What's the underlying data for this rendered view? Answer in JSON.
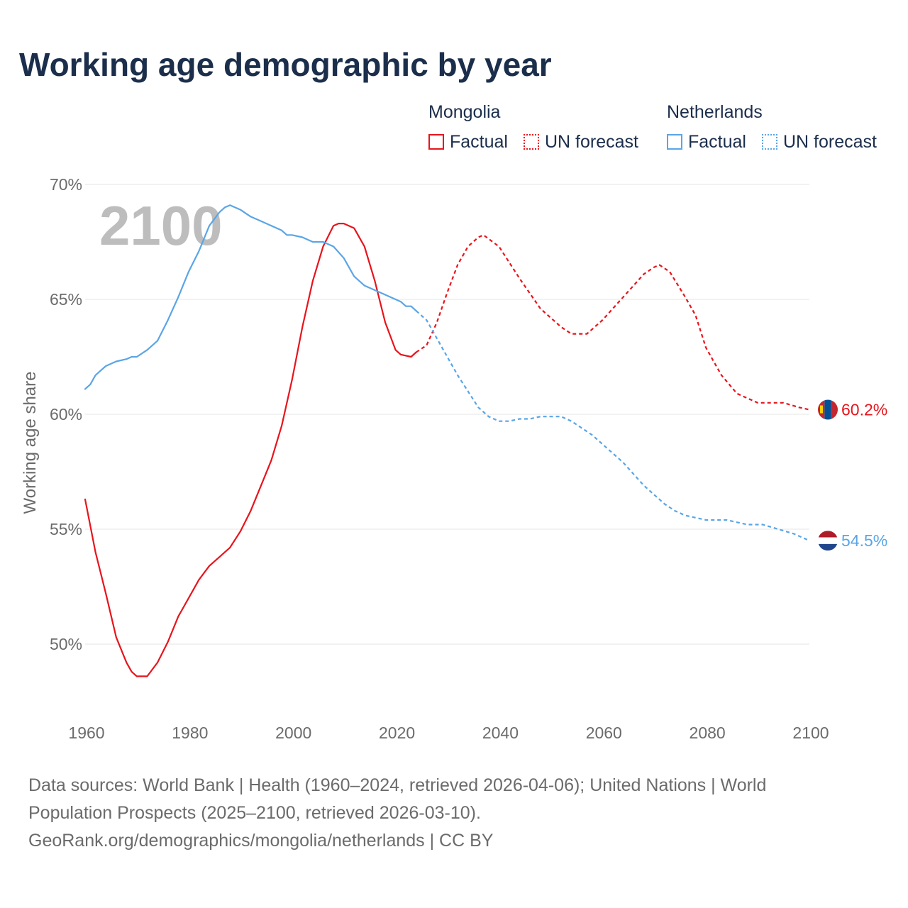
{
  "title": "Working age demographic by year",
  "legend": {
    "mongolia_title": "Mongolia",
    "netherlands_title": "Netherlands",
    "factual": "Factual",
    "forecast": "UN forecast"
  },
  "colors": {
    "mongolia": "#e8141c",
    "netherlands": "#5aa5e6",
    "title": "#1b2e4b",
    "grid": "#e6e6e6",
    "muted": "#6b6b6b"
  },
  "footer": {
    "line1": "Data sources: World Bank | Health (1960–2024, retrieved 2026-04-06); United Nations | World",
    "line2": "Population Prospects (2025–2100, retrieved 2026-03-10).",
    "line3": "GeoRank.org/demographics/mongolia/netherlands | CC BY"
  },
  "chart_data": {
    "type": "line",
    "title": "Working age demographic by year",
    "xlabel": "",
    "ylabel": "Working age share",
    "xlim": [
      1960,
      2100
    ],
    "ylim": [
      47.5,
      70
    ],
    "x_ticks": [
      1960,
      1980,
      2000,
      2020,
      2040,
      2060,
      2080,
      2100
    ],
    "x_tick_labels": [
      "1960",
      "1980",
      "2000",
      "2020",
      "2040",
      "2060",
      "2080",
      "2100"
    ],
    "y_ticks": [
      50,
      55,
      60,
      65,
      70
    ],
    "y_tick_labels": [
      "50%",
      "55%",
      "60%",
      "65%",
      "70%"
    ],
    "current_year": "2100",
    "series": [
      {
        "name": "Mongolia",
        "segment": "Factual",
        "key": "mongolia",
        "dashed": false,
        "points": [
          [
            1960,
            56.3
          ],
          [
            1962,
            54.0
          ],
          [
            1964,
            52.2
          ],
          [
            1966,
            50.3
          ],
          [
            1968,
            49.2
          ],
          [
            1969,
            48.8
          ],
          [
            1970,
            48.6
          ],
          [
            1972,
            48.6
          ],
          [
            1974,
            49.2
          ],
          [
            1976,
            50.1
          ],
          [
            1978,
            51.2
          ],
          [
            1980,
            52.0
          ],
          [
            1982,
            52.8
          ],
          [
            1984,
            53.4
          ],
          [
            1986,
            53.8
          ],
          [
            1988,
            54.2
          ],
          [
            1990,
            54.9
          ],
          [
            1992,
            55.8
          ],
          [
            1994,
            56.9
          ],
          [
            1996,
            58.0
          ],
          [
            1998,
            59.5
          ],
          [
            2000,
            61.5
          ],
          [
            2002,
            63.8
          ],
          [
            2004,
            65.8
          ],
          [
            2006,
            67.3
          ],
          [
            2008,
            68.2
          ],
          [
            2009,
            68.3
          ],
          [
            2010,
            68.3
          ],
          [
            2012,
            68.1
          ],
          [
            2014,
            67.3
          ],
          [
            2016,
            65.8
          ],
          [
            2018,
            64.0
          ],
          [
            2020,
            62.8
          ],
          [
            2021,
            62.6
          ],
          [
            2023,
            62.5
          ],
          [
            2024,
            62.7
          ]
        ]
      },
      {
        "name": "Mongolia",
        "segment": "UN forecast",
        "key": "mongolia",
        "dashed": true,
        "points": [
          [
            2024,
            62.7
          ],
          [
            2026,
            63.0
          ],
          [
            2028,
            64.0
          ],
          [
            2030,
            65.3
          ],
          [
            2032,
            66.5
          ],
          [
            2034,
            67.3
          ],
          [
            2036,
            67.7
          ],
          [
            2037,
            67.8
          ],
          [
            2040,
            67.3
          ],
          [
            2044,
            65.9
          ],
          [
            2048,
            64.6
          ],
          [
            2052,
            63.8
          ],
          [
            2054,
            63.5
          ],
          [
            2057,
            63.5
          ],
          [
            2060,
            64.1
          ],
          [
            2064,
            65.1
          ],
          [
            2068,
            66.1
          ],
          [
            2070,
            66.4
          ],
          [
            2071,
            66.5
          ],
          [
            2073,
            66.2
          ],
          [
            2076,
            65.1
          ],
          [
            2078,
            64.3
          ],
          [
            2080,
            62.9
          ],
          [
            2083,
            61.7
          ],
          [
            2086,
            60.9
          ],
          [
            2090,
            60.5
          ],
          [
            2095,
            60.5
          ],
          [
            2098,
            60.3
          ],
          [
            2100,
            60.2
          ]
        ]
      },
      {
        "name": "Netherlands",
        "segment": "Factual",
        "key": "netherlands",
        "dashed": false,
        "points": [
          [
            1960,
            61.1
          ],
          [
            1961,
            61.3
          ],
          [
            1962,
            61.7
          ],
          [
            1963,
            61.9
          ],
          [
            1964,
            62.1
          ],
          [
            1966,
            62.3
          ],
          [
            1968,
            62.4
          ],
          [
            1969,
            62.5
          ],
          [
            1970,
            62.5
          ],
          [
            1972,
            62.8
          ],
          [
            1974,
            63.2
          ],
          [
            1976,
            64.1
          ],
          [
            1978,
            65.1
          ],
          [
            1980,
            66.2
          ],
          [
            1982,
            67.1
          ],
          [
            1984,
            68.2
          ],
          [
            1986,
            68.8
          ],
          [
            1987,
            69.0
          ],
          [
            1988,
            69.1
          ],
          [
            1990,
            68.9
          ],
          [
            1992,
            68.6
          ],
          [
            1994,
            68.4
          ],
          [
            1996,
            68.2
          ],
          [
            1998,
            68.0
          ],
          [
            1999,
            67.8
          ],
          [
            2000,
            67.8
          ],
          [
            2002,
            67.7
          ],
          [
            2004,
            67.5
          ],
          [
            2006,
            67.5
          ],
          [
            2008,
            67.3
          ],
          [
            2010,
            66.8
          ],
          [
            2012,
            66.0
          ],
          [
            2014,
            65.6
          ],
          [
            2016,
            65.4
          ],
          [
            2018,
            65.2
          ],
          [
            2020,
            65.0
          ],
          [
            2021,
            64.9
          ],
          [
            2022,
            64.7
          ],
          [
            2023,
            64.7
          ],
          [
            2024,
            64.5
          ]
        ]
      },
      {
        "name": "Netherlands",
        "segment": "UN forecast",
        "key": "netherlands",
        "dashed": true,
        "points": [
          [
            2024,
            64.5
          ],
          [
            2026,
            64.1
          ],
          [
            2028,
            63.3
          ],
          [
            2030,
            62.5
          ],
          [
            2032,
            61.7
          ],
          [
            2034,
            61.0
          ],
          [
            2036,
            60.3
          ],
          [
            2038,
            59.9
          ],
          [
            2040,
            59.7
          ],
          [
            2042,
            59.7
          ],
          [
            2044,
            59.8
          ],
          [
            2046,
            59.8
          ],
          [
            2048,
            59.9
          ],
          [
            2050,
            59.9
          ],
          [
            2052,
            59.9
          ],
          [
            2054,
            59.7
          ],
          [
            2056,
            59.4
          ],
          [
            2058,
            59.1
          ],
          [
            2060,
            58.7
          ],
          [
            2062,
            58.3
          ],
          [
            2064,
            57.9
          ],
          [
            2066,
            57.4
          ],
          [
            2068,
            56.9
          ],
          [
            2070,
            56.5
          ],
          [
            2072,
            56.1
          ],
          [
            2074,
            55.8
          ],
          [
            2076,
            55.6
          ],
          [
            2078,
            55.5
          ],
          [
            2080,
            55.4
          ],
          [
            2084,
            55.4
          ],
          [
            2088,
            55.2
          ],
          [
            2091,
            55.2
          ],
          [
            2094,
            55.0
          ],
          [
            2097,
            54.8
          ],
          [
            2100,
            54.5
          ]
        ]
      }
    ],
    "end_labels": [
      {
        "key": "mongolia",
        "value": 60.2,
        "text": "60.2%",
        "flag": "mongolia-flag"
      },
      {
        "key": "netherlands",
        "value": 54.5,
        "text": "54.5%",
        "flag": "netherlands-flag"
      }
    ]
  }
}
